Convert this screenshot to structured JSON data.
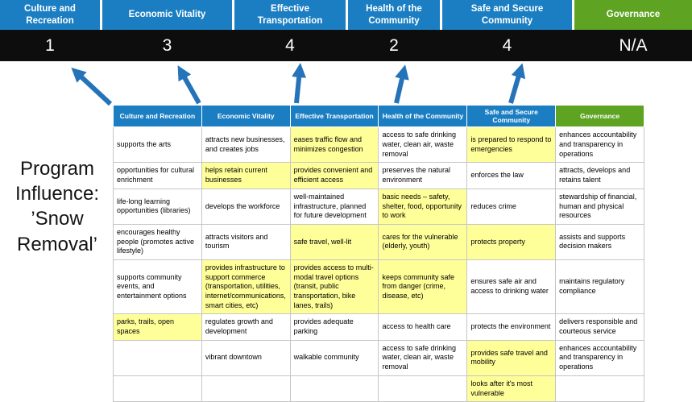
{
  "title": {
    "lines": [
      "Program",
      "Influence:",
      "’Snow",
      "Removal’"
    ]
  },
  "colors": {
    "category_blue": "#1b7ec2",
    "governance_green": "#5ea321",
    "score_band_black": "#0d0d0d",
    "highlight_yellow": "#ffff99",
    "arrow_blue": "#2573b8"
  },
  "scoreboard": {
    "columns": [
      {
        "label": "Culture and Recreation",
        "score": "1",
        "theme": "blue"
      },
      {
        "label": "Economic Vitality",
        "score": "3",
        "theme": "blue"
      },
      {
        "label": "Effective Transportation",
        "score": "4",
        "theme": "blue"
      },
      {
        "label": "Health of the Community",
        "score": "2",
        "theme": "blue"
      },
      {
        "label": "Safe and Secure Community",
        "score": "4",
        "theme": "blue"
      },
      {
        "label": "Governance",
        "score": "N/A",
        "theme": "green"
      }
    ]
  },
  "matrix": {
    "headers": [
      {
        "label": "Culture and Recreation",
        "theme": "blue"
      },
      {
        "label": "Economic Vitality",
        "theme": "blue"
      },
      {
        "label": "Effective Transportation",
        "theme": "blue"
      },
      {
        "label": "Health of the Community",
        "theme": "blue"
      },
      {
        "label": "Safe and Secure Community",
        "theme": "blue"
      },
      {
        "label": "Governance",
        "theme": "green"
      }
    ],
    "rows": [
      [
        {
          "text": "supports the arts",
          "highlight": false
        },
        {
          "text": "attracts new businesses, and creates jobs",
          "highlight": false
        },
        {
          "text": "eases traffic flow and minimizes congestion",
          "highlight": true
        },
        {
          "text": "access to safe drinking water, clean air, waste removal",
          "highlight": false
        },
        {
          "text": "is prepared to respond to emergencies",
          "highlight": true
        },
        {
          "text": "enhances accountability and transparency in operations",
          "highlight": false
        }
      ],
      [
        {
          "text": "opportunities for cultural enrichment",
          "highlight": false
        },
        {
          "text": "helps retain current businesses",
          "highlight": true
        },
        {
          "text": "provides convenient and efficient access",
          "highlight": true
        },
        {
          "text": "preserves the natural environment",
          "highlight": false
        },
        {
          "text": "enforces the law",
          "highlight": false
        },
        {
          "text": "attracts, develops and retains talent",
          "highlight": false
        }
      ],
      [
        {
          "text": "life-long learning opportunities (libraries)",
          "highlight": false
        },
        {
          "text": "develops the workforce",
          "highlight": false
        },
        {
          "text": "well-maintained infrastructure, planned for future development",
          "highlight": false
        },
        {
          "text": "basic needs – safety, shelter, food, opportunity to work",
          "highlight": true
        },
        {
          "text": "reduces crime",
          "highlight": false
        },
        {
          "text": "stewardship of financial, human and physical resources",
          "highlight": false
        }
      ],
      [
        {
          "text": "encourages healthy people (promotes active lifestyle)",
          "highlight": false
        },
        {
          "text": "attracts visitors and tourism",
          "highlight": false
        },
        {
          "text": "safe travel, well-lit",
          "highlight": true
        },
        {
          "text": "cares for the vulnerable (elderly, youth)",
          "highlight": true
        },
        {
          "text": "protects property",
          "highlight": true
        },
        {
          "text": "assists and supports decision makers",
          "highlight": false
        }
      ],
      [
        {
          "text": "supports community events, and entertainment options",
          "highlight": false
        },
        {
          "text": "provides infrastructure to support commerce (transportation, utilities, internet/communications, smart cities, etc)",
          "highlight": true
        },
        {
          "text": "provides access to multi-modal travel options (transit, public transportation, bike lanes, trails)",
          "highlight": true
        },
        {
          "text": "keeps community safe from danger (crime, disease, etc)",
          "highlight": true
        },
        {
          "text": "ensures safe air and access to drinking water",
          "highlight": false
        },
        {
          "text": "maintains regulatory compliance",
          "highlight": false
        }
      ],
      [
        {
          "text": "parks, trails, open spaces",
          "highlight": true
        },
        {
          "text": "regulates growth and development",
          "highlight": false
        },
        {
          "text": "provides adequate parking",
          "highlight": false
        },
        {
          "text": "access to health care",
          "highlight": false
        },
        {
          "text": "protects the environment",
          "highlight": false
        },
        {
          "text": "delivers responsible and courteous service",
          "highlight": false
        }
      ],
      [
        {
          "text": "",
          "highlight": false
        },
        {
          "text": "vibrant downtown",
          "highlight": false
        },
        {
          "text": "walkable community",
          "highlight": false
        },
        {
          "text": "access to safe drinking water, clean air, waste removal",
          "highlight": false
        },
        {
          "text": "provides safe travel and mobility",
          "highlight": true
        },
        {
          "text": "enhances accountability and transparency in operations",
          "highlight": false
        }
      ],
      [
        {
          "text": "",
          "highlight": false
        },
        {
          "text": "",
          "highlight": false
        },
        {
          "text": "",
          "highlight": false
        },
        {
          "text": "",
          "highlight": false
        },
        {
          "text": "looks after it's most vulnerable",
          "highlight": true
        },
        {
          "text": "",
          "highlight": false
        }
      ]
    ]
  }
}
